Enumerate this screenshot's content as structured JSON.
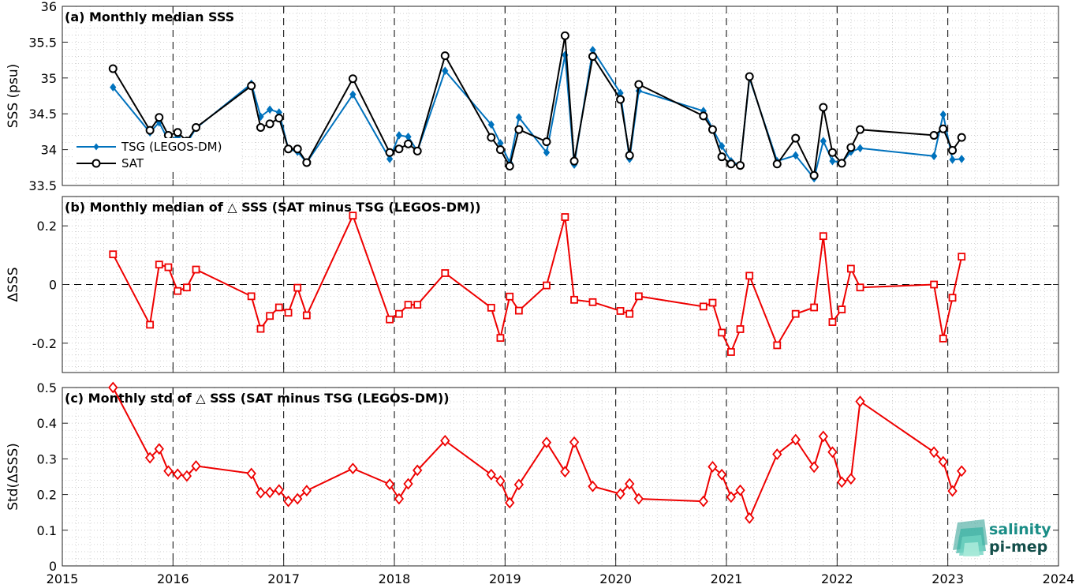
{
  "figure": {
    "logo_line1": "salinity",
    "logo_line2": "pi-mep"
  },
  "colors": {
    "tsg": "#0072bd",
    "sat": "#000000",
    "diff": "#ee0000",
    "grid": "#c8c8c8"
  },
  "chart_data": [
    {
      "type": "line",
      "title": "(a) Monthly median SSS",
      "ylabel": "SSS (psu)",
      "xlim": [
        2015,
        2024
      ],
      "ylim": [
        33.5,
        36
      ],
      "yticks": [
        33.5,
        34,
        34.5,
        35,
        35.5,
        36
      ],
      "yticklabels": [
        "33.5",
        "34",
        "34.5",
        "35",
        "35.5",
        "36"
      ],
      "grid": true,
      "legend_position": "left",
      "x": [
        2015.458,
        2015.792,
        2015.875,
        2015.958,
        2016.042,
        2016.125,
        2016.208,
        2016.708,
        2016.792,
        2016.875,
        2016.958,
        2017.042,
        2017.125,
        2017.208,
        2017.625,
        2017.958,
        2018.042,
        2018.125,
        2018.208,
        2018.458,
        2018.875,
        2018.958,
        2019.042,
        2019.125,
        2019.375,
        2019.542,
        2019.625,
        2019.792,
        2020.042,
        2020.125,
        2020.208,
        2020.792,
        2020.875,
        2020.958,
        2021.042,
        2021.125,
        2021.208,
        2021.458,
        2021.625,
        2021.792,
        2021.875,
        2021.958,
        2022.042,
        2022.125,
        2022.208,
        2022.875,
        2022.958,
        2023.042,
        2023.125
      ],
      "series": [
        {
          "name": "TSG (LEGOS-DM)",
          "values": [
            34.87,
            34.24,
            34.38,
            34.13,
            34.18,
            34.09,
            34.3,
            34.92,
            34.46,
            34.56,
            34.52,
            34.01,
            33.97,
            33.82,
            34.77,
            33.87,
            34.2,
            34.18,
            33.98,
            35.1,
            34.35,
            34.09,
            33.82,
            34.45,
            33.96,
            35.32,
            33.79,
            35.39,
            34.79,
            33.87,
            34.82,
            34.54,
            34.29,
            34.05,
            33.84,
            33.78,
            35.0,
            33.84,
            33.92,
            33.6,
            34.12,
            33.84,
            33.82,
            33.97,
            34.02,
            33.91,
            34.49,
            33.86,
            33.87
          ]
        },
        {
          "name": "SAT",
          "values": [
            35.13,
            34.27,
            34.45,
            34.2,
            34.24,
            34.12,
            34.31,
            34.89,
            34.31,
            34.36,
            34.44,
            34.01,
            34.01,
            33.82,
            34.99,
            33.96,
            34.01,
            34.08,
            33.98,
            35.31,
            34.17,
            34.0,
            33.77,
            34.28,
            34.11,
            35.59,
            33.84,
            35.3,
            34.7,
            33.92,
            34.91,
            34.47,
            34.28,
            33.9,
            33.8,
            33.78,
            35.02,
            33.8,
            34.16,
            33.64,
            34.59,
            33.96,
            33.81,
            34.03,
            34.28,
            34.2,
            34.29,
            33.99,
            34.17
          ]
        }
      ]
    },
    {
      "type": "line",
      "title": "(b) Monthly median of △ SSS (SAT minus TSG (LEGOS-DM))",
      "ylabel": "ΔSSS",
      "xlim": [
        2015,
        2024
      ],
      "ylim": [
        -0.3,
        0.3
      ],
      "yticks": [
        -0.2,
        0,
        0.2
      ],
      "yticklabels": [
        "-0.2",
        "0",
        "0.2"
      ],
      "zero_line": true,
      "grid": true,
      "x": [
        2015.458,
        2015.792,
        2015.875,
        2015.958,
        2016.042,
        2016.125,
        2016.208,
        2016.708,
        2016.792,
        2016.875,
        2016.958,
        2017.042,
        2017.125,
        2017.208,
        2017.625,
        2017.958,
        2018.042,
        2018.125,
        2018.208,
        2018.458,
        2018.875,
        2018.958,
        2019.042,
        2019.125,
        2019.375,
        2019.542,
        2019.625,
        2019.792,
        2020.042,
        2020.125,
        2020.208,
        2020.792,
        2020.875,
        2020.958,
        2021.042,
        2021.125,
        2021.208,
        2021.458,
        2021.625,
        2021.792,
        2021.875,
        2021.958,
        2022.042,
        2022.125,
        2022.208,
        2022.875,
        2022.958,
        2023.042,
        2023.125
      ],
      "series": [
        {
          "name": "",
          "values": [
            0.103,
            -0.137,
            0.068,
            0.059,
            -0.022,
            -0.01,
            0.051,
            -0.04,
            -0.151,
            -0.107,
            -0.078,
            -0.096,
            -0.011,
            -0.105,
            0.235,
            -0.119,
            -0.1,
            -0.069,
            -0.069,
            0.039,
            -0.079,
            -0.182,
            -0.041,
            -0.089,
            -0.003,
            0.23,
            -0.052,
            -0.06,
            -0.09,
            -0.1,
            -0.04,
            -0.075,
            -0.062,
            -0.164,
            -0.23,
            -0.152,
            0.03,
            -0.207,
            -0.1,
            -0.078,
            0.165,
            -0.128,
            -0.085,
            0.054,
            -0.01,
            0.0,
            -0.184,
            -0.045,
            0.095
          ]
        }
      ]
    },
    {
      "type": "line",
      "title": "(c) Monthly std of △ SSS (SAT minus TSG (LEGOS-DM))",
      "ylabel": "Std(ΔSSS)",
      "xlim": [
        2015,
        2024
      ],
      "ylim": [
        0,
        0.5
      ],
      "yticks": [
        0,
        0.1,
        0.2,
        0.3,
        0.4,
        0.5
      ],
      "yticklabels": [
        "0",
        "0.1",
        "0.2",
        "0.3",
        "0.4",
        "0.5"
      ],
      "xticks": [
        2015,
        2016,
        2017,
        2018,
        2019,
        2020,
        2021,
        2022,
        2023,
        2024
      ],
      "xticklabels": [
        "2015",
        "2016",
        "2017",
        "2018",
        "2019",
        "2020",
        "2021",
        "2022",
        "2023",
        "2024"
      ],
      "grid": true,
      "x": [
        2015.458,
        2015.792,
        2015.875,
        2015.958,
        2016.042,
        2016.125,
        2016.208,
        2016.708,
        2016.792,
        2016.875,
        2016.958,
        2017.042,
        2017.125,
        2017.208,
        2017.625,
        2017.958,
        2018.042,
        2018.125,
        2018.208,
        2018.458,
        2018.875,
        2018.958,
        2019.042,
        2019.125,
        2019.375,
        2019.542,
        2019.625,
        2019.792,
        2020.042,
        2020.125,
        2020.208,
        2020.792,
        2020.875,
        2020.958,
        2021.042,
        2021.125,
        2021.208,
        2021.458,
        2021.625,
        2021.792,
        2021.875,
        2021.958,
        2022.042,
        2022.125,
        2022.208,
        2022.875,
        2022.958,
        2023.042,
        2023.125
      ],
      "series": [
        {
          "name": "",
          "values": [
            0.5,
            0.303,
            0.328,
            0.266,
            0.257,
            0.252,
            0.28,
            0.259,
            0.205,
            0.206,
            0.213,
            0.181,
            0.188,
            0.211,
            0.273,
            0.229,
            0.188,
            0.23,
            0.268,
            0.351,
            0.256,
            0.238,
            0.177,
            0.228,
            0.346,
            0.264,
            0.347,
            0.223,
            0.202,
            0.23,
            0.188,
            0.181,
            0.278,
            0.256,
            0.193,
            0.212,
            0.134,
            0.313,
            0.354,
            0.277,
            0.363,
            0.319,
            0.235,
            0.244,
            0.461,
            0.319,
            0.292,
            0.21,
            0.266
          ]
        }
      ]
    }
  ]
}
